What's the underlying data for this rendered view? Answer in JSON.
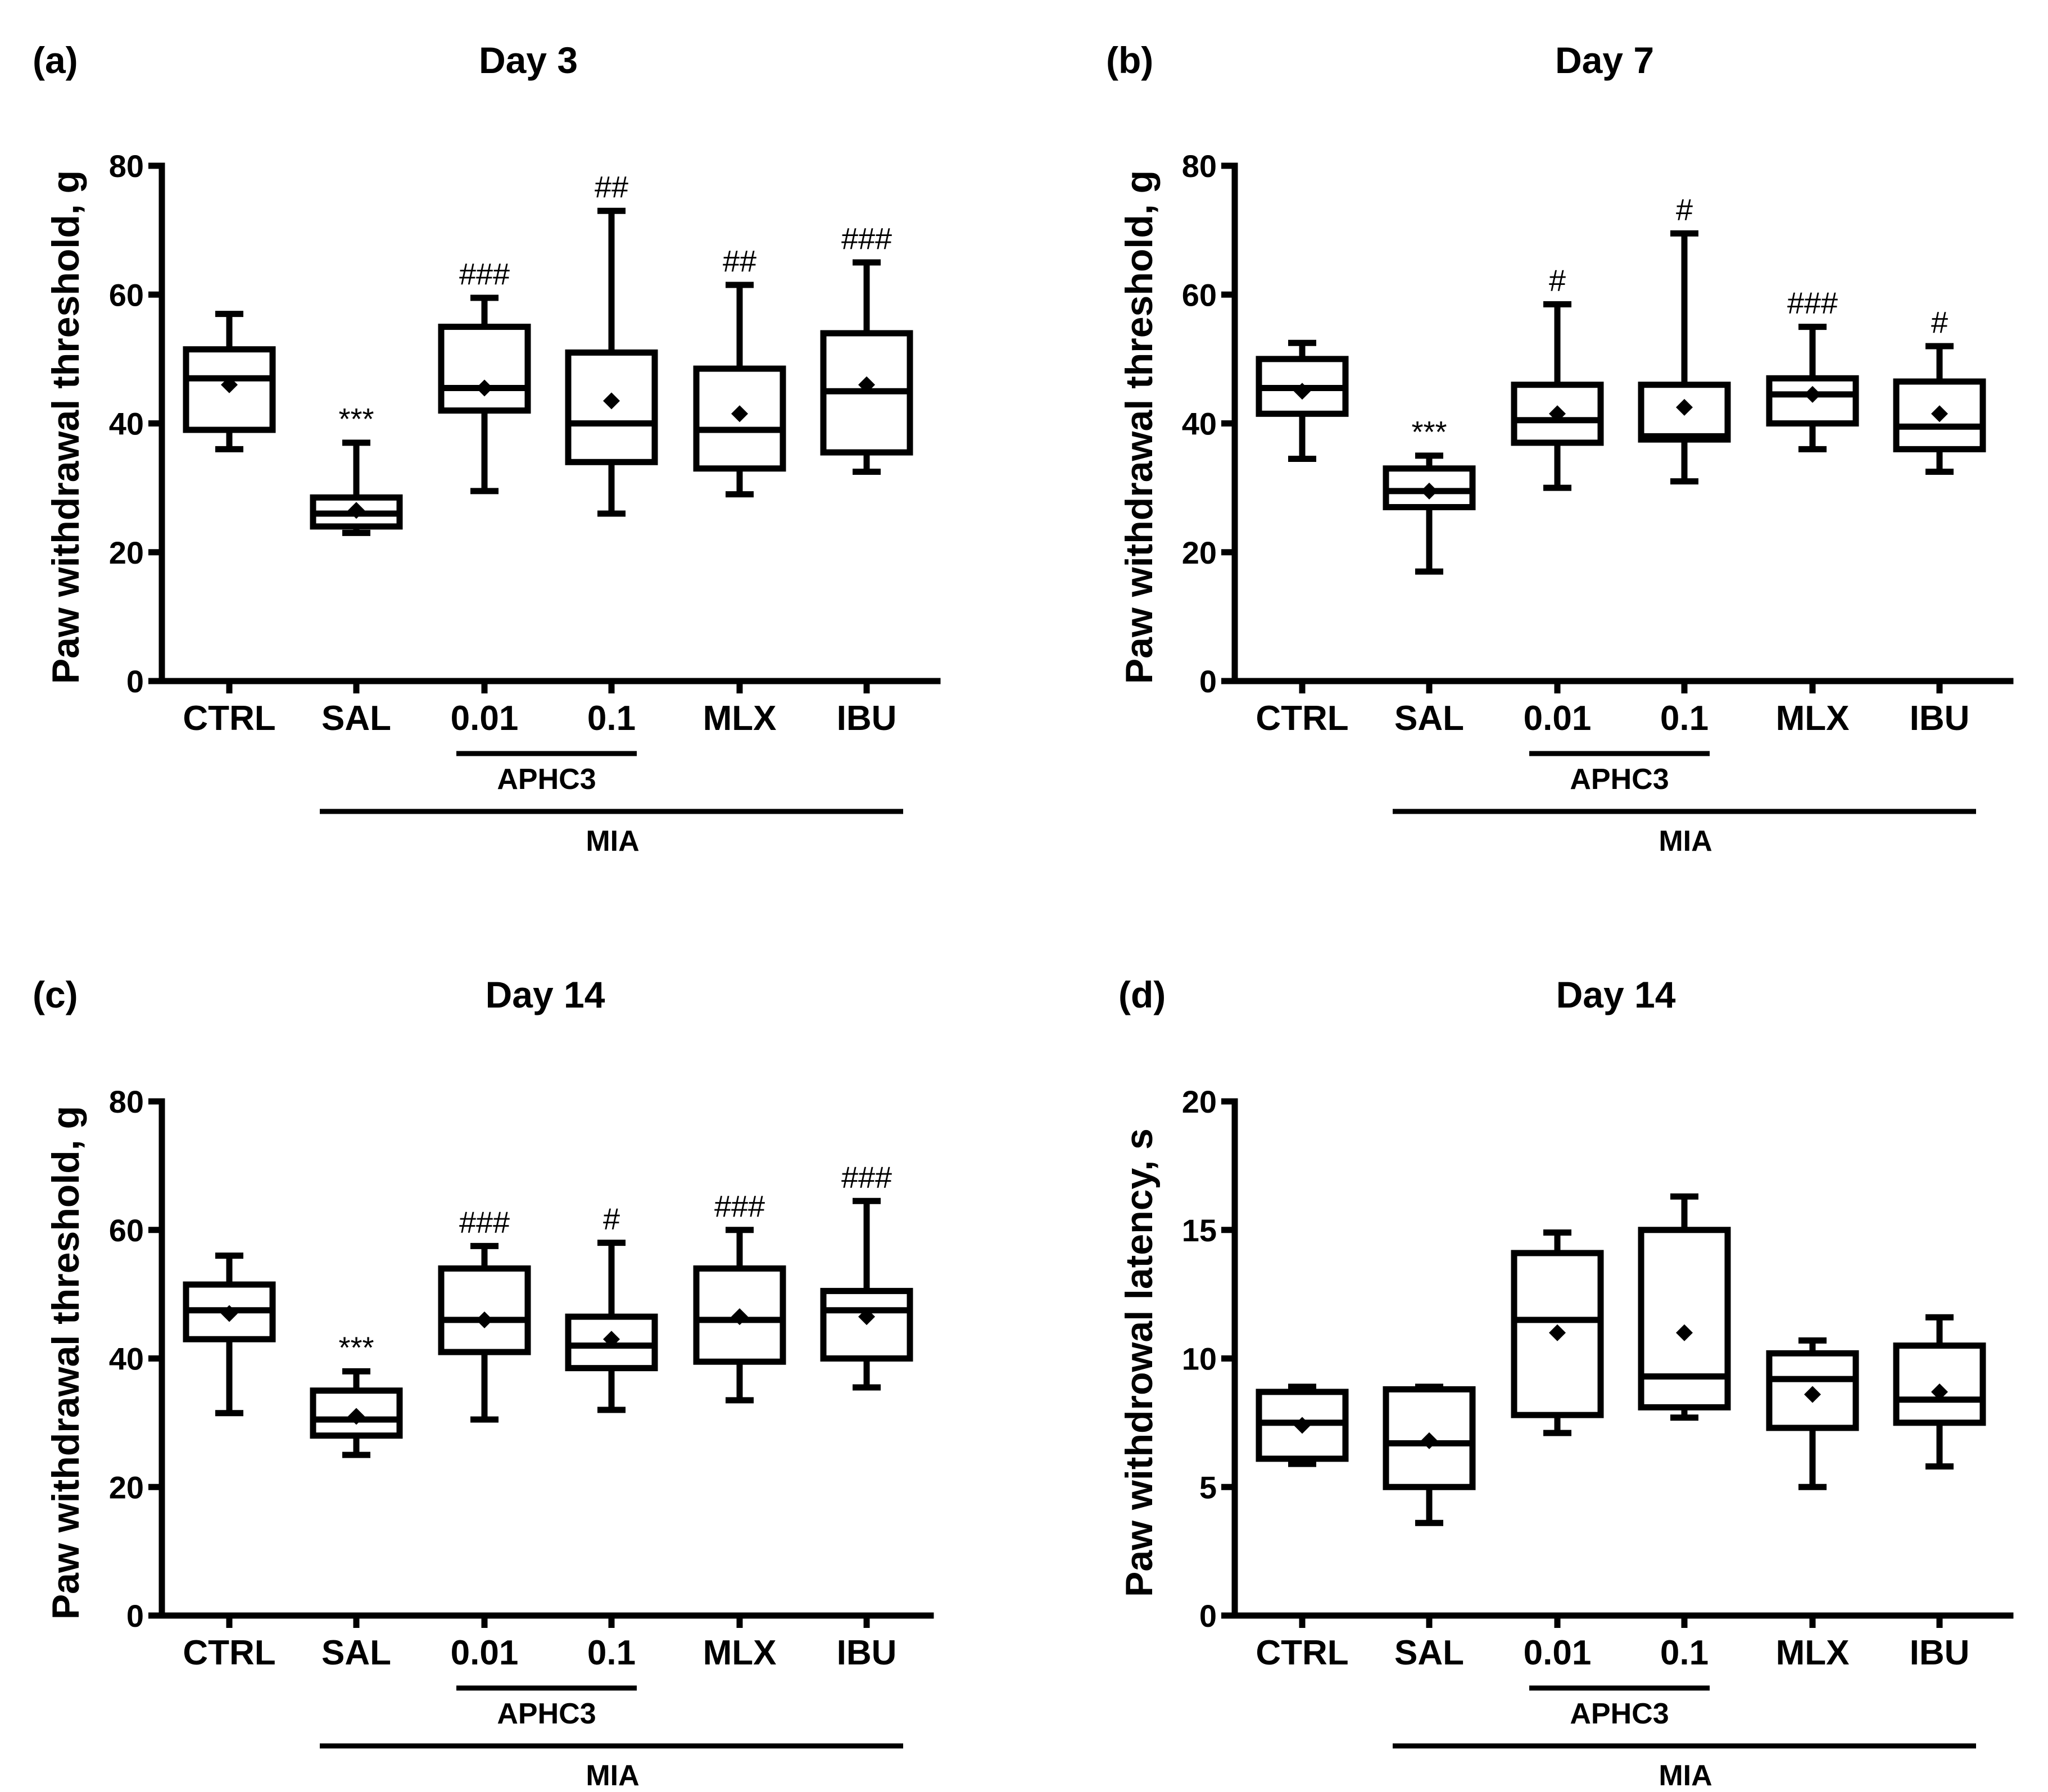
{
  "chart_data": [
    {
      "type": "box",
      "panel": "(a)",
      "title": "Day 3",
      "ylabel": "Paw withdrawal threshold, g",
      "xlabel": "",
      "ylim": [
        0,
        80
      ],
      "yticks": [
        "0",
        "20",
        "40",
        "60",
        "80"
      ],
      "categories": [
        "CTRL",
        "SAL",
        "0.01",
        "0.1",
        "MLX",
        "IBU"
      ],
      "boxes": [
        {
          "min": 36,
          "q1": 39,
          "median": 47,
          "q3": 51.5,
          "max": 57,
          "mean": 46
        },
        {
          "min": 23,
          "q1": 24,
          "median": 26,
          "q3": 28.5,
          "max": 37,
          "mean": 26.5
        },
        {
          "min": 29.5,
          "q1": 42,
          "median": 45.5,
          "q3": 55,
          "max": 59.5,
          "mean": 45.5
        },
        {
          "min": 26,
          "q1": 34,
          "median": 40,
          "q3": 51,
          "max": 73,
          "mean": 43.5
        },
        {
          "min": 29,
          "q1": 33,
          "median": 39,
          "q3": 48.5,
          "max": 61.5,
          "mean": 41.5
        },
        {
          "min": 32.5,
          "q1": 35.5,
          "median": 45,
          "q3": 54,
          "max": 65,
          "mean": 46
        }
      ],
      "significance": [
        "",
        "***",
        "###",
        "##",
        "##",
        "###"
      ],
      "group_labels": {
        "aphc3": "APHC3",
        "mia": "MIA"
      }
    },
    {
      "type": "box",
      "panel": "(b)",
      "title": "Day 7",
      "ylabel": "Paw withdrawal threshold, g",
      "xlabel": "",
      "ylim": [
        0,
        80
      ],
      "yticks": [
        "0",
        "20",
        "40",
        "60",
        "80"
      ],
      "categories": [
        "CTRL",
        "SAL",
        "0.01",
        "0.1",
        "MLX",
        "IBU"
      ],
      "boxes": [
        {
          "min": 34.5,
          "q1": 41.5,
          "median": 45.5,
          "q3": 50,
          "max": 52.5,
          "mean": 45
        },
        {
          "min": 17,
          "q1": 27,
          "median": 29.5,
          "q3": 33,
          "max": 35,
          "mean": 29.5
        },
        {
          "min": 30,
          "q1": 37,
          "median": 40.5,
          "q3": 46,
          "max": 58.5,
          "mean": 41.5
        },
        {
          "min": 31,
          "q1": 37.5,
          "median": 38,
          "q3": 46,
          "max": 69.5,
          "mean": 42.5
        },
        {
          "min": 36,
          "q1": 40,
          "median": 44.5,
          "q3": 47,
          "max": 55,
          "mean": 44.5
        },
        {
          "min": 32.5,
          "q1": 36,
          "median": 39.5,
          "q3": 46.5,
          "max": 52,
          "mean": 41.5
        }
      ],
      "significance": [
        "",
        "***",
        "#",
        "#",
        "###",
        "#"
      ],
      "group_labels": {
        "aphc3": "APHC3",
        "mia": "MIA"
      }
    },
    {
      "type": "box",
      "panel": "(c)",
      "title": "Day 14",
      "ylabel": "Paw withdrawal threshold, g",
      "xlabel": "",
      "ylim": [
        0,
        80
      ],
      "yticks": [
        "0",
        "20",
        "40",
        "60",
        "80"
      ],
      "categories": [
        "CTRL",
        "SAL",
        "0.01",
        "0.1",
        "MLX",
        "IBU"
      ],
      "boxes": [
        {
          "min": 31.5,
          "q1": 43,
          "median": 47.5,
          "q3": 51.5,
          "max": 56,
          "mean": 47
        },
        {
          "min": 25,
          "q1": 28,
          "median": 30.5,
          "q3": 35,
          "max": 38,
          "mean": 31
        },
        {
          "min": 30.5,
          "q1": 41,
          "median": 46,
          "q3": 54,
          "max": 57.5,
          "mean": 46
        },
        {
          "min": 32,
          "q1": 38.5,
          "median": 42,
          "q3": 46.5,
          "max": 58,
          "mean": 43
        },
        {
          "min": 33.5,
          "q1": 39.5,
          "median": 46,
          "q3": 54,
          "max": 60,
          "mean": 46.5
        },
        {
          "min": 35.5,
          "q1": 40,
          "median": 47.5,
          "q3": 50.5,
          "max": 64.5,
          "mean": 46.5
        }
      ],
      "significance": [
        "",
        "***",
        "###",
        "#",
        "###",
        "###"
      ],
      "group_labels": {
        "aphc3": "APHC3",
        "mia": "MIA"
      }
    },
    {
      "type": "box",
      "panel": "(d)",
      "title": "Day 14",
      "ylabel": "Paw withdrowal latency, s",
      "xlabel": "",
      "ylim": [
        0,
        20
      ],
      "yticks": [
        "0",
        "5",
        "10",
        "15",
        "20"
      ],
      "categories": [
        "CTRL",
        "SAL",
        "0.01",
        "0.1",
        "MLX",
        "IBU"
      ],
      "boxes": [
        {
          "min": 5.9,
          "q1": 6.1,
          "median": 7.5,
          "q3": 8.7,
          "max": 8.9,
          "mean": 7.4
        },
        {
          "min": 3.6,
          "q1": 5,
          "median": 6.7,
          "q3": 8.8,
          "max": 8.9,
          "mean": 6.8
        },
        {
          "min": 7.1,
          "q1": 7.8,
          "median": 11.5,
          "q3": 14.1,
          "max": 14.9,
          "mean": 11
        },
        {
          "min": 7.7,
          "q1": 8.1,
          "median": 9.3,
          "q3": 15,
          "max": 16.3,
          "mean": 11
        },
        {
          "min": 5,
          "q1": 7.3,
          "median": 9.2,
          "q3": 10.2,
          "max": 10.7,
          "mean": 8.6
        },
        {
          "min": 5.8,
          "q1": 7.5,
          "median": 8.4,
          "q3": 10.5,
          "max": 11.6,
          "mean": 8.7
        }
      ],
      "significance": [
        "",
        "",
        "",
        "",
        "",
        ""
      ],
      "group_labels": {
        "aphc3": "APHC3",
        "mia": "MIA"
      }
    }
  ]
}
